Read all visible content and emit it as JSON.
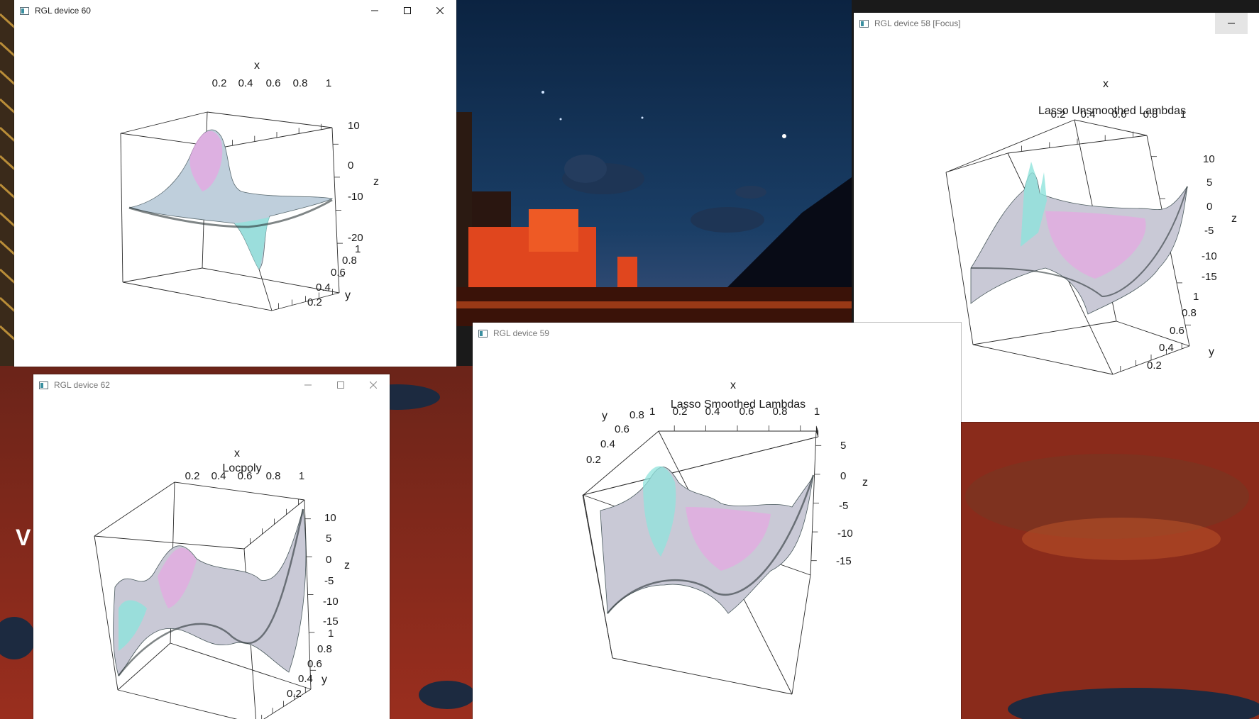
{
  "windows": {
    "dev60": {
      "title": "RGL device 60",
      "plot_title": "",
      "axis": {
        "x_label": "x",
        "x_ticks": [
          "0.2",
          "0.4",
          "0.6",
          "0.8",
          "1"
        ],
        "y_label": "y",
        "y_ticks": [
          "0.2",
          "0.4",
          "0.6",
          "0.8",
          "1"
        ],
        "z_label": "z",
        "z_ticks": [
          "10",
          "0",
          "-10",
          "-20"
        ]
      }
    },
    "dev58": {
      "title": "RGL device 58 [Focus]",
      "plot_title": "Lasso Unsmoothed Lambdas",
      "axis": {
        "x_label": "x",
        "x_ticks": [
          "0.2",
          "0.4",
          "0.6",
          "0.8",
          "1"
        ],
        "y_label": "y",
        "y_ticks": [
          "0.2",
          "0.4",
          "0.6",
          "0.8",
          "1"
        ],
        "z_label": "z",
        "z_ticks": [
          "10",
          "5",
          "0",
          "-5",
          "-10",
          "-15"
        ]
      }
    },
    "dev62": {
      "title": "RGL device 62",
      "plot_title": "Locpoly",
      "axis": {
        "x_label": "x",
        "x_ticks": [
          "0.2",
          "0.4",
          "0.6",
          "0.8",
          "1"
        ],
        "y_label": "y",
        "y_ticks": [
          "0.2",
          "0.4",
          "0.6",
          "0.8",
          "1"
        ],
        "z_label": "z",
        "z_ticks": [
          "10",
          "5",
          "0",
          "-5",
          "-10",
          "-15"
        ]
      }
    },
    "dev59": {
      "title": "RGL device 59",
      "plot_title": "Lasso Smoothed Lambdas",
      "axis": {
        "x_label": "x",
        "x_ticks": [
          "0.2",
          "0.4",
          "0.6",
          "0.8",
          "1"
        ],
        "y_label": "y",
        "y_ticks": [
          "0.2",
          "0.4",
          "0.6",
          "0.8",
          "1"
        ],
        "z_label": "z",
        "z_ticks": [
          "5",
          "0",
          "-5",
          "-10",
          "-15"
        ]
      }
    }
  },
  "desktop_text": "V",
  "colors": {
    "surface_a": "#8fe3dc",
    "surface_b": "#e7a6e3",
    "surface_c": "#c9c9d6",
    "surface_dark": "#3d4a4c",
    "sky": "#0d2a4a",
    "sea_red": "#8c2a1c"
  }
}
